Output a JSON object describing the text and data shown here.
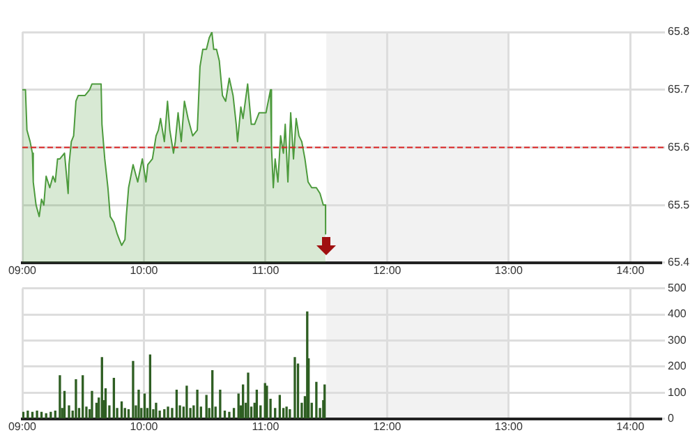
{
  "chart_data": [
    {
      "type": "area",
      "xlim": [
        9,
        14.25
      ],
      "ylim": [
        65.4,
        65.8
      ],
      "yticks": [
        65.4,
        65.5,
        65.6,
        65.7,
        65.8
      ],
      "xticks": [
        {
          "value": 9,
          "label": "09:00"
        },
        {
          "value": 10,
          "label": "10:00"
        },
        {
          "value": 11,
          "label": "11:00"
        },
        {
          "value": 12,
          "label": "12:00"
        },
        {
          "value": 13,
          "label": "13:00"
        },
        {
          "value": 14,
          "label": "14:00"
        }
      ],
      "grid": true,
      "legend": false,
      "ref_lines": [
        {
          "axis": "y",
          "value": 65.6,
          "color": "#dd2222",
          "line_style": "dashed"
        }
      ],
      "bands": [
        {
          "axis": "x",
          "from": 11.5,
          "to": 13,
          "color": "#f2f2f2"
        }
      ],
      "series": [
        {
          "color": "#4c9a3c",
          "x": [
            9.0,
            9.026,
            9.038,
            9.064,
            9.083,
            9.09,
            9.113,
            9.139,
            9.158,
            9.177,
            9.196,
            9.226,
            9.252,
            9.271,
            9.29,
            9.309,
            9.347,
            9.377,
            9.384,
            9.403,
            9.422,
            9.441,
            9.46,
            9.516,
            9.554,
            9.573,
            9.591,
            9.648,
            9.655,
            9.678,
            9.704,
            9.723,
            9.753,
            9.78,
            9.798,
            9.817,
            9.844,
            9.855,
            9.874,
            9.911,
            9.949,
            9.987,
            10.017,
            10.032,
            10.07,
            10.1,
            10.119,
            10.137,
            10.168,
            10.194,
            10.213,
            10.243,
            10.258,
            10.281,
            10.307,
            10.333,
            10.363,
            10.401,
            10.439,
            10.461,
            10.484,
            10.514,
            10.537,
            10.559,
            10.574,
            10.597,
            10.62,
            10.646,
            10.672,
            10.702,
            10.733,
            10.759,
            10.77,
            10.797,
            10.815,
            10.853,
            10.883,
            10.91,
            10.947,
            11.004,
            11.041,
            11.049,
            11.064,
            11.079,
            11.102,
            11.124,
            11.147,
            11.162,
            11.184,
            11.207,
            11.23,
            11.252,
            11.275,
            11.298,
            11.324,
            11.35,
            11.38,
            11.418,
            11.448,
            11.475,
            11.493,
            11.494
          ],
          "values": [
            65.7,
            65.7,
            65.63,
            65.61,
            65.59,
            65.54,
            65.5,
            65.48,
            65.51,
            65.5,
            65.55,
            65.53,
            65.55,
            65.54,
            65.58,
            65.58,
            65.59,
            65.52,
            65.57,
            65.61,
            65.62,
            65.68,
            65.69,
            65.69,
            65.7,
            65.71,
            65.71,
            65.71,
            65.64,
            65.58,
            65.53,
            65.48,
            65.47,
            65.45,
            65.44,
            65.43,
            65.44,
            65.48,
            65.53,
            65.57,
            65.54,
            65.58,
            65.54,
            65.57,
            65.58,
            65.62,
            65.63,
            65.65,
            65.61,
            65.68,
            65.63,
            65.59,
            65.61,
            65.66,
            65.61,
            65.68,
            65.65,
            65.62,
            65.63,
            65.74,
            65.77,
            65.77,
            65.79,
            65.8,
            65.77,
            65.77,
            65.75,
            65.69,
            65.68,
            65.72,
            65.69,
            65.64,
            65.61,
            65.67,
            65.65,
            65.71,
            65.64,
            65.64,
            65.66,
            65.66,
            65.7,
            65.6,
            65.53,
            65.58,
            65.54,
            65.62,
            65.59,
            65.64,
            65.54,
            65.66,
            65.58,
            65.65,
            65.62,
            65.61,
            65.58,
            65.54,
            65.53,
            65.53,
            65.52,
            65.5,
            65.5,
            65.45
          ]
        }
      ]
    },
    {
      "type": "bar",
      "xlim": [
        9,
        14.25
      ],
      "ylim": [
        0,
        500
      ],
      "yticks": [
        0,
        100,
        200,
        300,
        400,
        500
      ],
      "xticks": [
        {
          "value": 9,
          "label": "09:00"
        },
        {
          "value": 10,
          "label": "10:00"
        },
        {
          "value": 11,
          "label": "11:00"
        },
        {
          "value": 12,
          "label": "12:00"
        },
        {
          "value": 13,
          "label": "13:00"
        },
        {
          "value": 14,
          "label": "14:00"
        }
      ],
      "grid": true,
      "legend": false,
      "bands": [
        {
          "axis": "x",
          "from": 11.5,
          "to": 13,
          "color": "#f2f2f2"
        }
      ],
      "series": [
        {
          "color": "#2e5e22",
          "x": [
            9.008,
            9.045,
            9.083,
            9.121,
            9.158,
            9.196,
            9.234,
            9.271,
            9.309,
            9.328,
            9.347,
            9.384,
            9.414,
            9.441,
            9.467,
            9.497,
            9.527,
            9.554,
            9.573,
            9.61,
            9.629,
            9.655,
            9.67,
            9.685,
            9.716,
            9.753,
            9.78,
            9.817,
            9.844,
            9.874,
            9.911,
            9.934,
            9.957,
            9.979,
            10.006,
            10.028,
            10.051,
            10.077,
            10.1,
            10.13,
            10.168,
            10.198,
            10.232,
            10.269,
            10.296,
            10.326,
            10.352,
            10.382,
            10.409,
            10.439,
            10.469,
            10.514,
            10.537,
            10.563,
            10.589,
            10.627,
            10.665,
            10.702,
            10.74,
            10.778,
            10.797,
            10.815,
            10.838,
            10.857,
            10.883,
            10.91,
            10.928,
            10.959,
            10.996,
            11.011,
            11.041,
            11.079,
            11.117,
            11.147,
            11.173,
            11.2,
            11.241,
            11.267,
            11.298,
            11.324,
            11.343,
            11.354,
            11.38,
            11.418,
            11.448,
            11.475,
            11.486
          ],
          "values": [
            25,
            30,
            25,
            30,
            25,
            20,
            25,
            30,
            165,
            40,
            105,
            50,
            30,
            150,
            40,
            165,
            45,
            35,
            105,
            60,
            80,
            235,
            70,
            115,
            50,
            155,
            40,
            65,
            40,
            35,
            220,
            50,
            110,
            40,
            95,
            40,
            245,
            35,
            60,
            30,
            35,
            45,
            40,
            110,
            50,
            45,
            125,
            40,
            50,
            110,
            45,
            90,
            40,
            185,
            45,
            110,
            30,
            25,
            40,
            95,
            50,
            130,
            60,
            175,
            45,
            60,
            110,
            50,
            135,
            125,
            75,
            40,
            90,
            40,
            45,
            35,
            235,
            210,
            60,
            85,
            410,
            230,
            60,
            140,
            40,
            70,
            130
          ]
        }
      ]
    }
  ]
}
